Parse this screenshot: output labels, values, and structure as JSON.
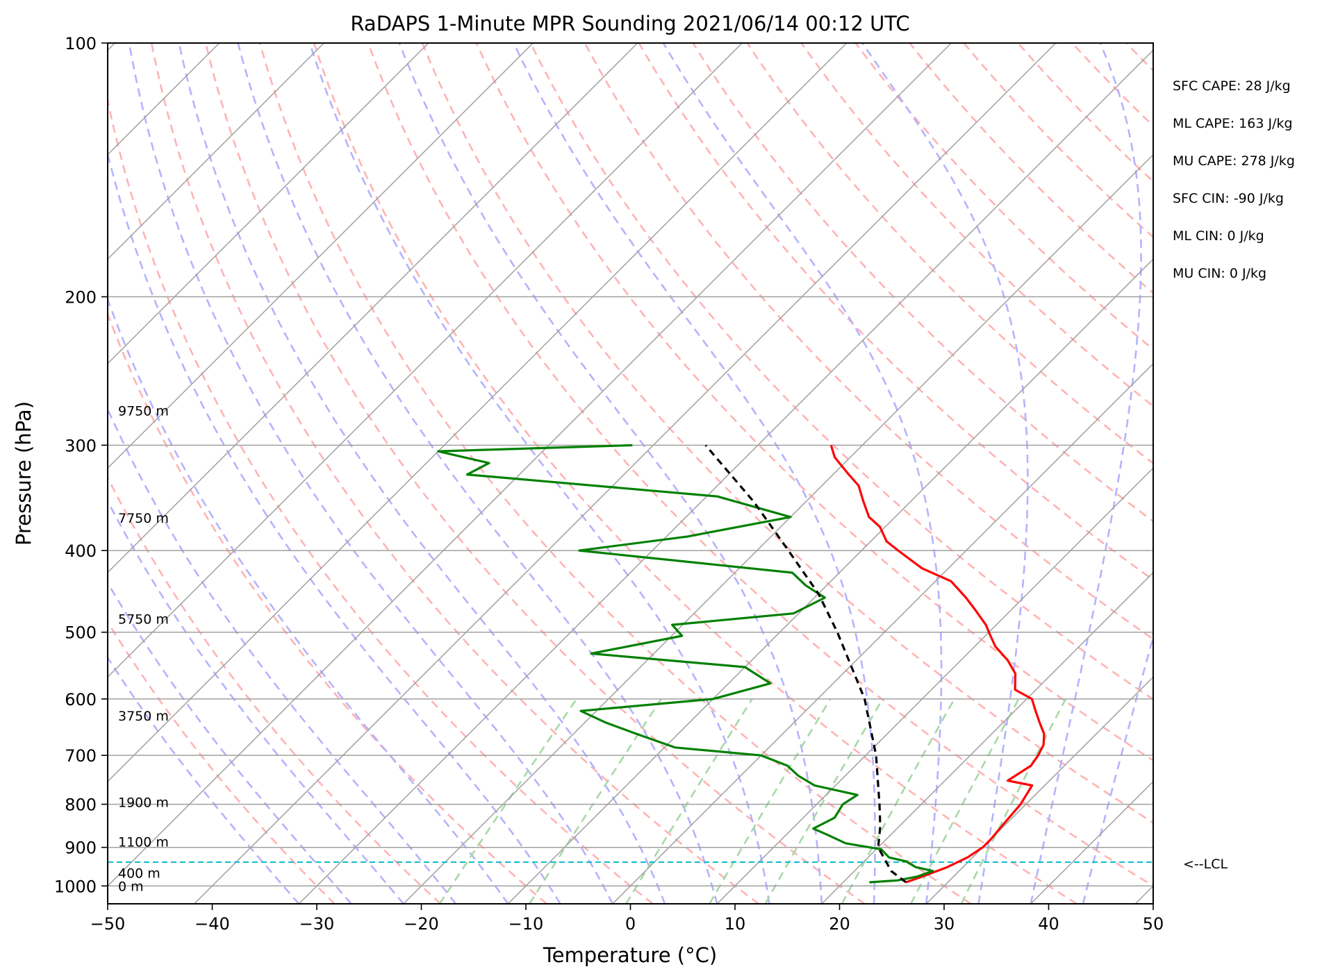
{
  "chart_data": {
    "type": "skew-t",
    "title": "RaDAPS 1-Minute MPR Sounding 2021/06/14 00:12 UTC",
    "xlabel": "Temperature (°C)",
    "ylabel": "Pressure (hPa)",
    "xlim": [
      -50,
      50
    ],
    "ylim": [
      1050,
      100
    ],
    "y_scale": "log",
    "x_ticks": [
      -50,
      -40,
      -30,
      -20,
      -10,
      0,
      10,
      20,
      30,
      40,
      50
    ],
    "x_tick_labels": [
      "−50",
      "−40",
      "−30",
      "−20",
      "−10",
      "0",
      "10",
      "20",
      "30",
      "40",
      "50"
    ],
    "y_ticks": [
      100,
      200,
      300,
      400,
      500,
      600,
      700,
      800,
      900,
      1000
    ],
    "y_tick_labels": [
      "100",
      "200",
      "300",
      "400",
      "500",
      "600",
      "700",
      "800",
      "900",
      "1000"
    ],
    "grid": true,
    "colors": {
      "temperature": "#ff0000",
      "dewpoint": "#008000",
      "parcel": "#000000",
      "lcl": "#17becf",
      "isotherm": "#a0a0a0",
      "dry_adiabat": "#ffb3b3",
      "moist_adiabat": "#b3b3ff",
      "mixing_ratio": "#a8d8a8"
    },
    "series": [
      {
        "name": "Temperature",
        "color": "#ff0000",
        "points": [
          [
            990,
            26.0
          ],
          [
            975,
            27.0
          ],
          [
            950,
            28.5
          ],
          [
            925,
            29.5
          ],
          [
            900,
            30.0
          ],
          [
            880,
            30.0
          ],
          [
            850,
            29.8
          ],
          [
            800,
            29.5
          ],
          [
            760,
            28.8
          ],
          [
            750,
            26.0
          ],
          [
            720,
            26.8
          ],
          [
            700,
            26.5
          ],
          [
            680,
            26.0
          ],
          [
            660,
            25.0
          ],
          [
            640,
            23.5
          ],
          [
            620,
            22.0
          ],
          [
            600,
            20.5
          ],
          [
            585,
            18.0
          ],
          [
            560,
            16.5
          ],
          [
            540,
            14.5
          ],
          [
            520,
            12.0
          ],
          [
            505,
            10.5
          ],
          [
            490,
            9.0
          ],
          [
            470,
            6.5
          ],
          [
            455,
            4.5
          ],
          [
            435,
            1.5
          ],
          [
            420,
            -2.5
          ],
          [
            400,
            -6.5
          ],
          [
            390,
            -8.5
          ],
          [
            375,
            -10.5
          ],
          [
            365,
            -12.5
          ],
          [
            350,
            -14.5
          ],
          [
            335,
            -16.5
          ],
          [
            325,
            -18.5
          ],
          [
            310,
            -21.5
          ],
          [
            300,
            -23.0
          ]
        ]
      },
      {
        "name": "Dewpoint",
        "color": "#008000",
        "points": [
          [
            990,
            22.5
          ],
          [
            985,
            25.0
          ],
          [
            975,
            26.5
          ],
          [
            960,
            27.5
          ],
          [
            950,
            25.5
          ],
          [
            935,
            24.0
          ],
          [
            925,
            22.0
          ],
          [
            905,
            20.5
          ],
          [
            890,
            16.5
          ],
          [
            870,
            14.0
          ],
          [
            855,
            12.0
          ],
          [
            830,
            13.0
          ],
          [
            800,
            12.5
          ],
          [
            780,
            13.0
          ],
          [
            760,
            8.0
          ],
          [
            740,
            5.5
          ],
          [
            720,
            3.5
          ],
          [
            700,
            0.0
          ],
          [
            685,
            -9.0
          ],
          [
            660,
            -14.0
          ],
          [
            640,
            -18.0
          ],
          [
            620,
            -21.5
          ],
          [
            600,
            -10.0
          ],
          [
            575,
            -6.0
          ],
          [
            550,
            -10.0
          ],
          [
            530,
            -26.0
          ],
          [
            505,
            -19.0
          ],
          [
            490,
            -21.0
          ],
          [
            475,
            -10.5
          ],
          [
            455,
            -9.0
          ],
          [
            440,
            -12.0
          ],
          [
            425,
            -14.5
          ],
          [
            400,
            -37.0
          ],
          [
            385,
            -28.0
          ],
          [
            365,
            -20.0
          ],
          [
            345,
            -29.0
          ],
          [
            325,
            -55.0
          ],
          [
            315,
            -54.0
          ],
          [
            305,
            -60.0
          ],
          [
            300,
            -42.0
          ]
        ]
      },
      {
        "name": "Parcel",
        "color": "#000000",
        "points": [
          [
            990,
            26.0
          ],
          [
            960,
            23.5
          ],
          [
            937,
            22.2
          ],
          [
            900,
            20.0
          ],
          [
            850,
            18.2
          ],
          [
            800,
            16.0
          ],
          [
            700,
            11.0
          ],
          [
            600,
            4.5
          ],
          [
            500,
            -4.5
          ],
          [
            450,
            -10.0
          ],
          [
            400,
            -17.0
          ],
          [
            350,
            -25.0
          ],
          [
            300,
            -35.0
          ]
        ]
      }
    ],
    "lcl": {
      "pressure": 937,
      "label": "<--LCL"
    },
    "height_labels": [
      {
        "pressure": 273,
        "label": "9750 m"
      },
      {
        "pressure": 366,
        "label": "7750 m"
      },
      {
        "pressure": 482,
        "label": "5750 m"
      },
      {
        "pressure": 628,
        "label": "3750 m"
      },
      {
        "pressure": 795,
        "label": "1900 m"
      },
      {
        "pressure": 886,
        "label": "1100 m"
      },
      {
        "pressure": 965,
        "label": "400 m"
      },
      {
        "pressure": 1000,
        "label": "0 m"
      }
    ],
    "annotations": [
      "SFC CAPE: 28 J/kg",
      "ML CAPE: 163 J/kg",
      "MU CAPE: 278 J/kg",
      "SFC CIN: -90 J/kg",
      "ML CIN: 0 J/kg",
      "MU CIN: 0 J/kg"
    ]
  }
}
